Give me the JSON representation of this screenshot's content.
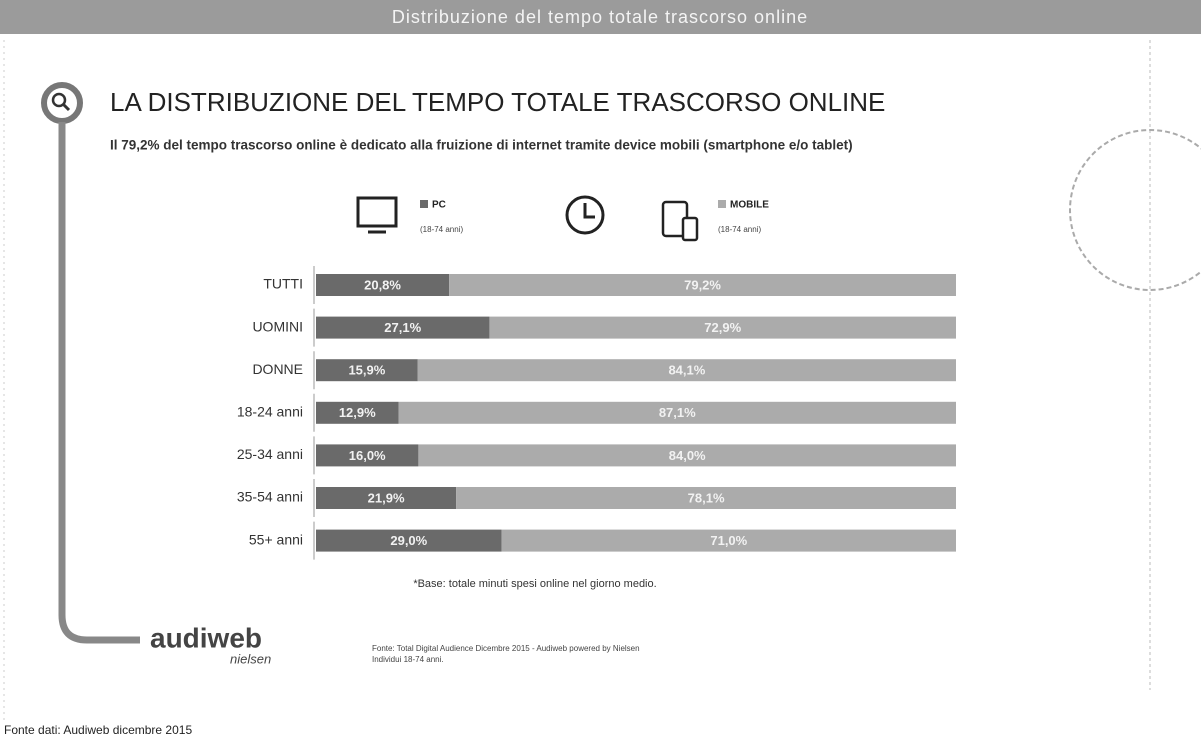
{
  "chart_data": {
    "type": "stacked-barh",
    "banner": "Distribuzione del tempo totale trascorso online",
    "title": "LA DISTRIBUZIONE DEL TEMPO TOTALE TRASCORSO ONLINE",
    "subtitle": "Il 79,2% del tempo trascorso online è dedicato alla fruizione di internet tramite device mobili (smartphone e/o tablet)",
    "categories": [
      "TUTTI",
      "UOMINI",
      "DONNE",
      "18-24 anni",
      "25-34 anni",
      "35-54 anni",
      "55+ anni"
    ],
    "series": [
      {
        "name": "PC",
        "note": "(18-74 anni)",
        "color": "#6a6a6a",
        "values": [
          20.8,
          27.1,
          15.9,
          12.9,
          16.0,
          21.9,
          29.0
        ],
        "value_labels": [
          "20,8%",
          "27,1%",
          "15,9%",
          "12,9%",
          "16,0%",
          "21,9%",
          "29,0%"
        ]
      },
      {
        "name": "MOBILE",
        "note": "(18-74 anni)",
        "color": "#ababab",
        "values": [
          79.2,
          72.9,
          84.1,
          87.1,
          84.0,
          78.1,
          71.0
        ],
        "value_labels": [
          "79,2%",
          "72,9%",
          "84,1%",
          "87,1%",
          "84,0%",
          "78,1%",
          "71,0%"
        ]
      }
    ],
    "xlim": [
      0,
      100
    ],
    "footnote": "*Base: totale minuti spesi online nel giorno medio.",
    "logo": "audiweb",
    "logo_sub": "nielsen",
    "source": [
      "Fonte: Total Digital Audience Dicembre 2015 - Audiweb powered by Nielsen",
      "Individui 18-74 anni."
    ],
    "footer": "Fonte dati: Audiweb dicembre 2015"
  }
}
